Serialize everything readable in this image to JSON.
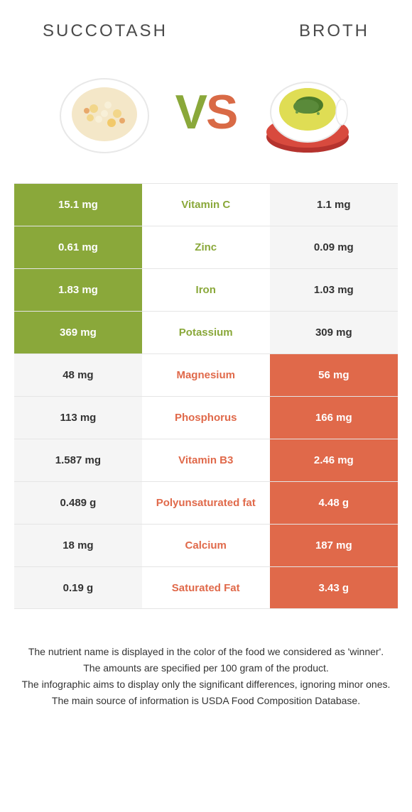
{
  "header": {
    "left": "Succotash",
    "right": "Broth"
  },
  "vs": {
    "v": "V",
    "s": "S"
  },
  "colors": {
    "green": "#8aa83a",
    "orange": "#e0694a",
    "neutral_bg": "#f5f5f5",
    "row_border": "#e5e5e5",
    "header_text": "#4a4a4a",
    "body_text": "#333333",
    "white": "#ffffff"
  },
  "rows": [
    {
      "left": "15.1 mg",
      "label": "Vitamin C",
      "right": "1.1 mg",
      "winner": "left"
    },
    {
      "left": "0.61 mg",
      "label": "Zinc",
      "right": "0.09 mg",
      "winner": "left"
    },
    {
      "left": "1.83 mg",
      "label": "Iron",
      "right": "1.03 mg",
      "winner": "left"
    },
    {
      "left": "369 mg",
      "label": "Potassium",
      "right": "309 mg",
      "winner": "left"
    },
    {
      "left": "48 mg",
      "label": "Magnesium",
      "right": "56 mg",
      "winner": "right"
    },
    {
      "left": "113 mg",
      "label": "Phosphorus",
      "right": "166 mg",
      "winner": "right"
    },
    {
      "left": "1.587 mg",
      "label": "Vitamin B3",
      "right": "2.46 mg",
      "winner": "right"
    },
    {
      "left": "0.489 g",
      "label": "Polyunsaturated fat",
      "right": "4.48 g",
      "winner": "right"
    },
    {
      "left": "18 mg",
      "label": "Calcium",
      "right": "187 mg",
      "winner": "right"
    },
    {
      "left": "0.19 g",
      "label": "Saturated Fat",
      "right": "3.43 g",
      "winner": "right"
    }
  ],
  "footer": {
    "line1": "The nutrient name is displayed in the color of the food we considered as 'winner'.",
    "line2": "The amounts are specified per 100 gram of the product.",
    "line3": "The infographic aims to display only the significant differences, ignoring minor ones.",
    "line4": "The main source of information is USDA Food Composition Database."
  }
}
